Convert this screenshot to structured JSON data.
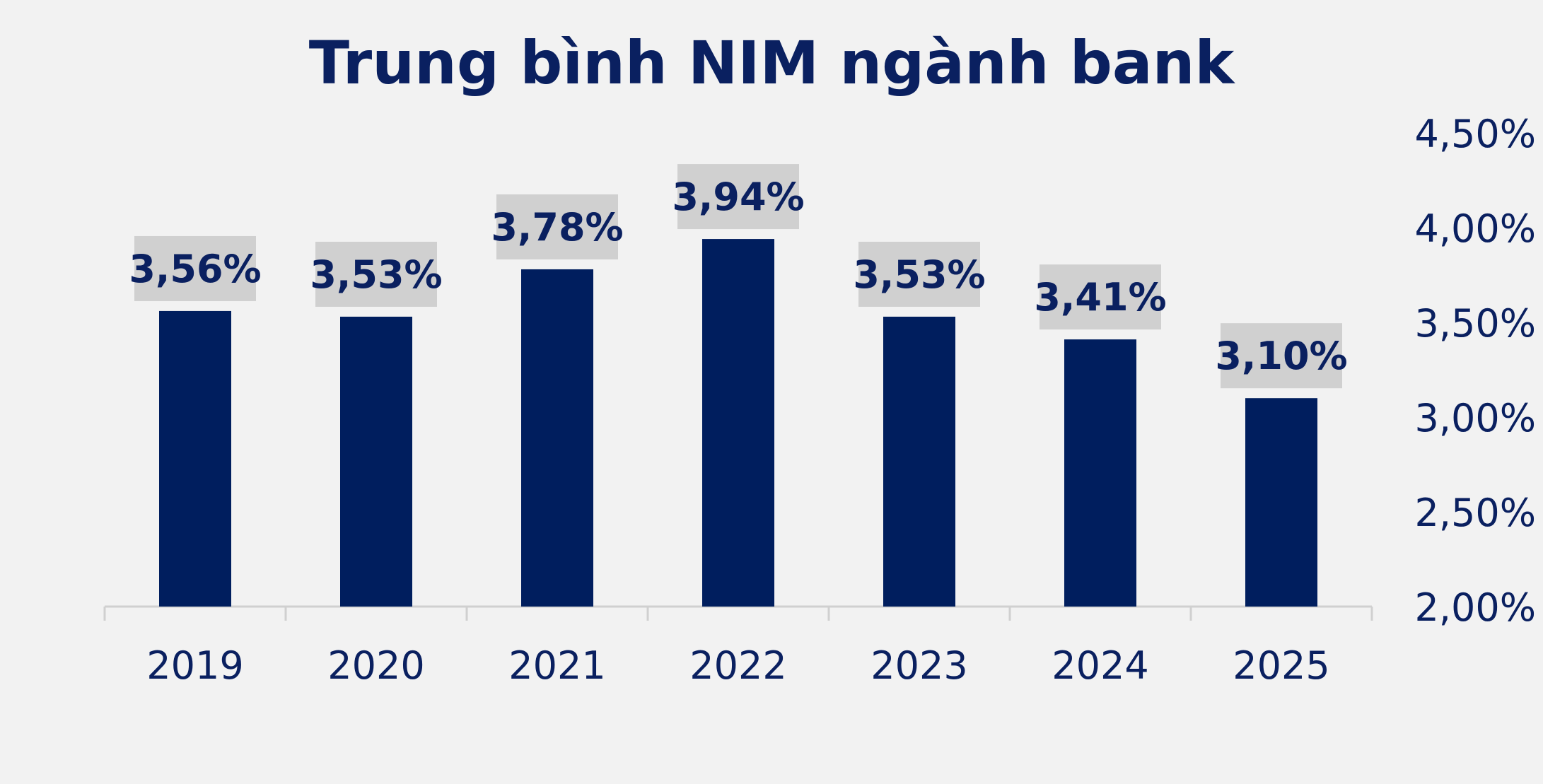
{
  "chart_data": {
    "type": "bar",
    "title": "Trung bình NIM ngành bank",
    "categories": [
      "2019",
      "2020",
      "2021",
      "2022",
      "2023",
      "2024",
      "2025"
    ],
    "values": [
      3.56,
      3.53,
      3.78,
      3.94,
      3.53,
      3.41,
      3.1
    ],
    "value_labels": [
      "3,56%",
      "3,53%",
      "3,78%",
      "3,94%",
      "3,53%",
      "3,41%",
      "3,10%"
    ],
    "y_ticks": [
      2.0,
      2.5,
      3.0,
      3.5,
      4.0,
      4.5
    ],
    "y_tick_labels": [
      "2,00%",
      "2,50%",
      "3,00%",
      "3,50%",
      "4,00%",
      "4,50%"
    ],
    "ylim": [
      2.0,
      4.5
    ],
    "y_axis_position": "right",
    "grid": false,
    "bar_color": "#001e5e",
    "label_box_color": "#d0d0d0",
    "text_color": "#0a2060"
  }
}
